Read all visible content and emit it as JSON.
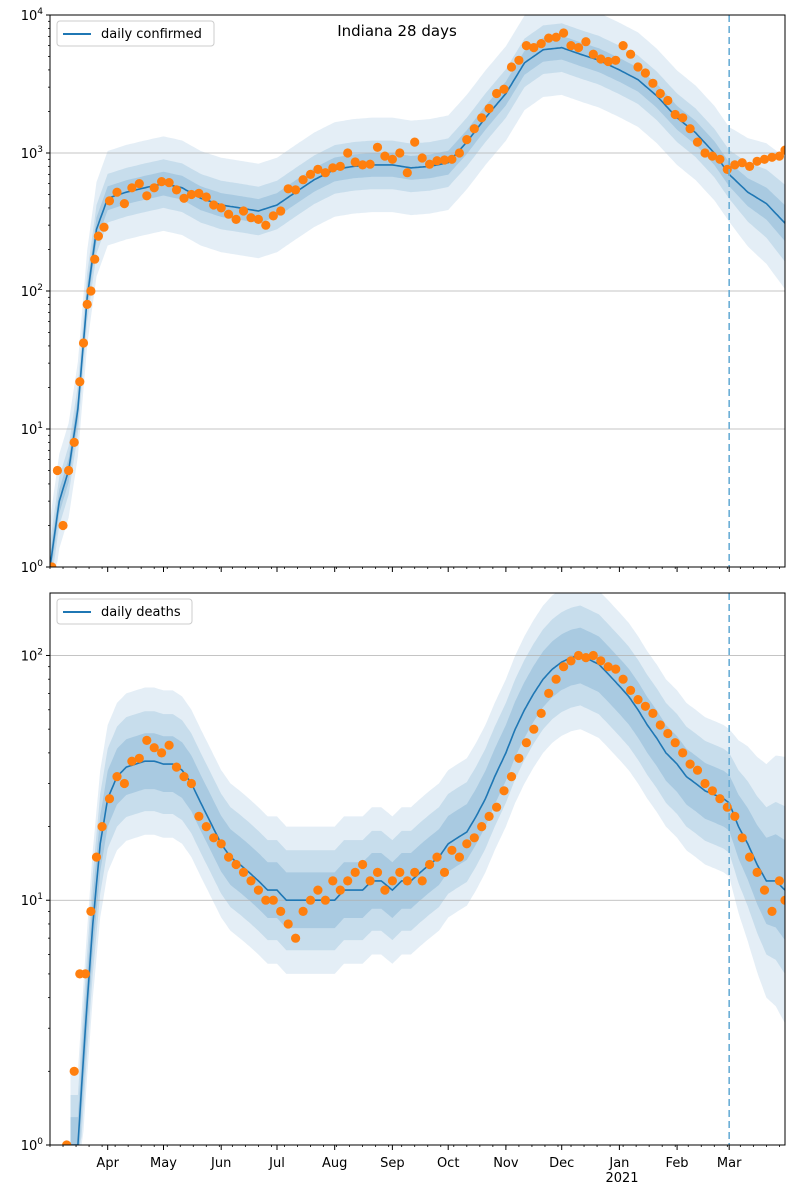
{
  "chart_data": [
    {
      "type": "line",
      "title": "Indiana 28 days",
      "yscale": "log",
      "ylim": [
        1,
        10000
      ],
      "y_ticks": [
        {
          "value": 1,
          "label": "10^0"
        },
        {
          "value": 10,
          "label": "10^1"
        },
        {
          "value": 100,
          "label": "10^2"
        },
        {
          "value": 1000,
          "label": "10^3"
        },
        {
          "value": 10000,
          "label": "10^4"
        }
      ],
      "xlim": [
        "2020-03-01",
        "2021-03-31"
      ],
      "forecast_start": "2021-03-01",
      "grid": "horizontal",
      "legend_position": "upper left",
      "colors": {
        "line": "#1f77b4",
        "points": "#ff7f0e",
        "band": "#1f77b4",
        "grid": "#b0b0b0"
      },
      "series": [
        {
          "name": "daily confirmed",
          "kind": "line",
          "x": [
            "2020-03-01",
            "2020-03-06",
            "2020-03-11",
            "2020-03-16",
            "2020-03-21",
            "2020-03-26",
            "2020-04-01",
            "2020-04-11",
            "2020-04-21",
            "2020-05-01",
            "2020-05-11",
            "2020-05-21",
            "2020-06-01",
            "2020-06-11",
            "2020-06-21",
            "2020-07-01",
            "2020-07-11",
            "2020-07-21",
            "2020-08-01",
            "2020-08-11",
            "2020-08-21",
            "2020-09-01",
            "2020-09-11",
            "2020-09-21",
            "2020-10-01",
            "2020-10-11",
            "2020-10-21",
            "2020-11-01",
            "2020-11-11",
            "2020-11-21",
            "2020-12-01",
            "2020-12-11",
            "2020-12-21",
            "2021-01-01",
            "2021-01-11",
            "2021-01-21",
            "2021-02-01",
            "2021-02-11",
            "2021-02-21",
            "2021-03-01",
            "2021-03-11",
            "2021-03-21",
            "2021-03-31"
          ],
          "values": [
            1,
            3,
            5,
            14,
            90,
            280,
            470,
            520,
            560,
            600,
            560,
            470,
            420,
            400,
            380,
            420,
            520,
            640,
            760,
            800,
            820,
            820,
            780,
            800,
            850,
            1200,
            1800,
            2700,
            4500,
            5600,
            5800,
            5200,
            4700,
            4000,
            3400,
            2600,
            1800,
            1400,
            1000,
            700,
            520,
            430,
            310
          ]
        },
        {
          "name": "",
          "kind": "points",
          "x": [
            "2020-03-02",
            "2020-03-05",
            "2020-03-08",
            "2020-03-11",
            "2020-03-14",
            "2020-03-17",
            "2020-03-19",
            "2020-03-21",
            "2020-03-23",
            "2020-03-25",
            "2020-03-27",
            "2020-03-30",
            "2020-04-02",
            "2020-04-06",
            "2020-04-10",
            "2020-04-14",
            "2020-04-18",
            "2020-04-22",
            "2020-04-26",
            "2020-04-30",
            "2020-05-04",
            "2020-05-08",
            "2020-05-12",
            "2020-05-16",
            "2020-05-20",
            "2020-05-24",
            "2020-05-28",
            "2020-06-01",
            "2020-06-05",
            "2020-06-09",
            "2020-06-13",
            "2020-06-17",
            "2020-06-21",
            "2020-06-25",
            "2020-06-29",
            "2020-07-03",
            "2020-07-07",
            "2020-07-11",
            "2020-07-15",
            "2020-07-19",
            "2020-07-23",
            "2020-07-27",
            "2020-07-31",
            "2020-08-04",
            "2020-08-08",
            "2020-08-12",
            "2020-08-16",
            "2020-08-20",
            "2020-08-24",
            "2020-08-28",
            "2020-09-01",
            "2020-09-05",
            "2020-09-09",
            "2020-09-13",
            "2020-09-17",
            "2020-09-21",
            "2020-09-25",
            "2020-09-29",
            "2020-10-03",
            "2020-10-07",
            "2020-10-11",
            "2020-10-15",
            "2020-10-19",
            "2020-10-23",
            "2020-10-27",
            "2020-10-31",
            "2020-11-04",
            "2020-11-08",
            "2020-11-12",
            "2020-11-16",
            "2020-11-20",
            "2020-11-24",
            "2020-11-28",
            "2020-12-02",
            "2020-12-06",
            "2020-12-10",
            "2020-12-14",
            "2020-12-18",
            "2020-12-22",
            "2020-12-26",
            "2020-12-30",
            "2021-01-03",
            "2021-01-07",
            "2021-01-11",
            "2021-01-15",
            "2021-01-19",
            "2021-01-23",
            "2021-01-27",
            "2021-01-31",
            "2021-02-04",
            "2021-02-08",
            "2021-02-12",
            "2021-02-16",
            "2021-02-20",
            "2021-02-24",
            "2021-02-28",
            "2021-03-04",
            "2021-03-08",
            "2021-03-12",
            "2021-03-16",
            "2021-03-20",
            "2021-03-24",
            "2021-03-28",
            "2021-03-31"
          ],
          "values": [
            1,
            5,
            2,
            5,
            8,
            22,
            42,
            80,
            100,
            170,
            250,
            290,
            450,
            520,
            430,
            560,
            600,
            490,
            560,
            620,
            610,
            540,
            470,
            500,
            510,
            480,
            420,
            400,
            360,
            330,
            380,
            340,
            330,
            300,
            350,
            380,
            550,
            540,
            640,
            700,
            760,
            720,
            780,
            800,
            1000,
            860,
            820,
            830,
            1100,
            950,
            900,
            1000,
            720,
            1200,
            920,
            830,
            880,
            890,
            900,
            1000,
            1250,
            1500,
            1800,
            2100,
            2700,
            2900,
            4200,
            4700,
            6000,
            5800,
            6200,
            6800,
            6900,
            7400,
            6000,
            5800,
            6400,
            5200,
            4800,
            4600,
            4700,
            6000,
            5200,
            4200,
            3800,
            3200,
            2700,
            2400,
            1900,
            1800,
            1500,
            1200,
            1000,
            950,
            900,
            760,
            820,
            850,
            800,
            870,
            900,
            930,
            950,
            1050
          ]
        }
      ]
    },
    {
      "type": "line",
      "title": "",
      "yscale": "log",
      "ylim": [
        1,
        180
      ],
      "y_ticks": [
        {
          "value": 1,
          "label": "10^0"
        },
        {
          "value": 10,
          "label": "10^1"
        },
        {
          "value": 100,
          "label": "10^2"
        }
      ],
      "xlim": [
        "2020-03-01",
        "2021-03-31"
      ],
      "x_ticks": [
        {
          "date": "2020-04-01",
          "label": "Apr"
        },
        {
          "date": "2020-05-01",
          "label": "May"
        },
        {
          "date": "2020-06-01",
          "label": "Jun"
        },
        {
          "date": "2020-07-01",
          "label": "Jul"
        },
        {
          "date": "2020-08-01",
          "label": "Aug"
        },
        {
          "date": "2020-09-01",
          "label": "Sep"
        },
        {
          "date": "2020-10-01",
          "label": "Oct"
        },
        {
          "date": "2020-11-01",
          "label": "Nov"
        },
        {
          "date": "2020-12-01",
          "label": "Dec"
        },
        {
          "date": "2021-01-01",
          "label": "Jan"
        },
        {
          "date": "2021-02-01",
          "label": "Feb"
        },
        {
          "date": "2021-03-01",
          "label": "Mar"
        }
      ],
      "year_label": "2021",
      "forecast_start": "2021-03-01",
      "grid": "horizontal",
      "legend_position": "upper left",
      "series": [
        {
          "name": "daily deaths",
          "kind": "line",
          "x": [
            "2020-03-12",
            "2020-03-16",
            "2020-03-20",
            "2020-03-24",
            "2020-03-28",
            "2020-04-01",
            "2020-04-06",
            "2020-04-11",
            "2020-04-16",
            "2020-04-21",
            "2020-04-26",
            "2020-05-01",
            "2020-05-06",
            "2020-05-11",
            "2020-05-16",
            "2020-05-21",
            "2020-05-26",
            "2020-06-01",
            "2020-06-06",
            "2020-06-11",
            "2020-06-16",
            "2020-06-21",
            "2020-06-26",
            "2020-07-01",
            "2020-07-06",
            "2020-07-11",
            "2020-07-16",
            "2020-07-21",
            "2020-07-26",
            "2020-08-01",
            "2020-08-06",
            "2020-08-11",
            "2020-08-16",
            "2020-08-21",
            "2020-08-26",
            "2020-09-01",
            "2020-09-06",
            "2020-09-11",
            "2020-09-16",
            "2020-09-21",
            "2020-09-26",
            "2020-10-01",
            "2020-10-06",
            "2020-10-11",
            "2020-10-16",
            "2020-10-21",
            "2020-10-26",
            "2020-11-01",
            "2020-11-06",
            "2020-11-11",
            "2020-11-16",
            "2020-11-21",
            "2020-11-26",
            "2020-12-01",
            "2020-12-06",
            "2020-12-11",
            "2020-12-16",
            "2020-12-21",
            "2020-12-26",
            "2021-01-01",
            "2021-01-06",
            "2021-01-11",
            "2021-01-16",
            "2021-01-21",
            "2021-01-26",
            "2021-02-01",
            "2021-02-06",
            "2021-02-11",
            "2021-02-16",
            "2021-02-21",
            "2021-02-26",
            "2021-03-01",
            "2021-03-06",
            "2021-03-11",
            "2021-03-16",
            "2021-03-21",
            "2021-03-26",
            "2021-03-31"
          ],
          "values": [
            1,
            1,
            3,
            8,
            17,
            26,
            32,
            35,
            36,
            37,
            37,
            36,
            36,
            34,
            30,
            25,
            21,
            17,
            15,
            14,
            13,
            12,
            11,
            11,
            10,
            10,
            10,
            10,
            10,
            10,
            11,
            11,
            11,
            12,
            12,
            11,
            12,
            12,
            13,
            14,
            15,
            17,
            18,
            19,
            22,
            26,
            32,
            40,
            50,
            60,
            70,
            80,
            88,
            94,
            98,
            100,
            96,
            92,
            84,
            75,
            68,
            60,
            52,
            46,
            40,
            36,
            32,
            30,
            28,
            27,
            26,
            25,
            20,
            17,
            14,
            12,
            12,
            11
          ]
        },
        {
          "name": "",
          "kind": "points",
          "x": [
            "2020-03-10",
            "2020-03-14",
            "2020-03-17",
            "2020-03-20",
            "2020-03-23",
            "2020-03-26",
            "2020-03-29",
            "2020-04-02",
            "2020-04-06",
            "2020-04-10",
            "2020-04-14",
            "2020-04-18",
            "2020-04-22",
            "2020-04-26",
            "2020-04-30",
            "2020-05-04",
            "2020-05-08",
            "2020-05-12",
            "2020-05-16",
            "2020-05-20",
            "2020-05-24",
            "2020-05-28",
            "2020-06-01",
            "2020-06-05",
            "2020-06-09",
            "2020-06-13",
            "2020-06-17",
            "2020-06-21",
            "2020-06-25",
            "2020-06-29",
            "2020-07-03",
            "2020-07-07",
            "2020-07-11",
            "2020-07-15",
            "2020-07-19",
            "2020-07-23",
            "2020-07-27",
            "2020-07-31",
            "2020-08-04",
            "2020-08-08",
            "2020-08-12",
            "2020-08-16",
            "2020-08-20",
            "2020-08-24",
            "2020-08-28",
            "2020-09-01",
            "2020-09-05",
            "2020-09-09",
            "2020-09-13",
            "2020-09-17",
            "2020-09-21",
            "2020-09-25",
            "2020-09-29",
            "2020-10-03",
            "2020-10-07",
            "2020-10-11",
            "2020-10-15",
            "2020-10-19",
            "2020-10-23",
            "2020-10-27",
            "2020-10-31",
            "2020-11-04",
            "2020-11-08",
            "2020-11-12",
            "2020-11-16",
            "2020-11-20",
            "2020-11-24",
            "2020-11-28",
            "2020-12-02",
            "2020-12-06",
            "2020-12-10",
            "2020-12-14",
            "2020-12-18",
            "2020-12-22",
            "2020-12-26",
            "2020-12-30",
            "2021-01-03",
            "2021-01-07",
            "2021-01-11",
            "2021-01-15",
            "2021-01-19",
            "2021-01-23",
            "2021-01-27",
            "2021-01-31",
            "2021-02-04",
            "2021-02-08",
            "2021-02-12",
            "2021-02-16",
            "2021-02-20",
            "2021-02-24",
            "2021-02-28",
            "2021-03-04",
            "2021-03-08",
            "2021-03-12",
            "2021-03-16",
            "2021-03-20",
            "2021-03-24",
            "2021-03-28",
            "2021-03-31"
          ],
          "values": [
            1,
            2,
            5,
            5,
            9,
            15,
            20,
            26,
            32,
            30,
            37,
            38,
            45,
            42,
            40,
            43,
            35,
            32,
            30,
            22,
            20,
            18,
            17,
            15,
            14,
            13,
            12,
            11,
            10,
            10,
            9,
            8,
            7,
            9,
            10,
            11,
            10,
            12,
            11,
            12,
            13,
            14,
            12,
            13,
            11,
            12,
            13,
            12,
            13,
            12,
            14,
            15,
            13,
            16,
            15,
            17,
            18,
            20,
            22,
            24,
            28,
            32,
            38,
            44,
            50,
            58,
            70,
            80,
            90,
            95,
            100,
            98,
            100,
            95,
            90,
            88,
            80,
            72,
            66,
            62,
            58,
            52,
            48,
            44,
            40,
            36,
            34,
            30,
            28,
            26,
            24,
            22,
            18,
            15,
            13,
            11,
            9,
            12,
            10
          ]
        }
      ]
    }
  ]
}
